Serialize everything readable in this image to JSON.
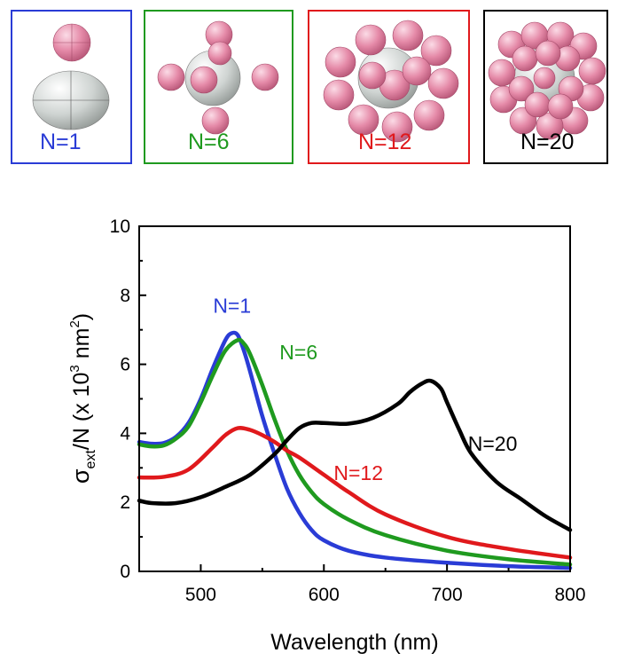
{
  "panels": [
    {
      "label": "N=1",
      "color": "#2a3cd6",
      "border": "#2a3cd6"
    },
    {
      "label": "N=6",
      "color": "#1f9a1f",
      "border": "#1f9a1f"
    },
    {
      "label": "N=12",
      "color": "#e0191c",
      "border": "#e0191c"
    },
    {
      "label": "N=20",
      "color": "#000000",
      "border": "#000000"
    }
  ],
  "chart_data": {
    "type": "line",
    "title": "",
    "xlabel": "Wavelength (nm)",
    "ylabel_parts": {
      "sigma": "σ",
      "sub": "ext",
      "mid": "/N (x 10",
      "sup3": "3",
      "unit": " nm",
      "sup2": "2",
      "end": ")"
    },
    "xlim": [
      450,
      800
    ],
    "ylim": [
      0,
      10
    ],
    "xticks": [
      500,
      600,
      700,
      800
    ],
    "yticks": [
      0,
      2,
      4,
      6,
      8,
      10
    ],
    "grid": false,
    "series": [
      {
        "name": "N=1",
        "color": "#2a3cd6",
        "x": [
          450,
          460,
          470,
          480,
          490,
          500,
          510,
          520,
          525,
          530,
          535,
          540,
          550,
          560,
          570,
          580,
          590,
          600,
          620,
          650,
          700,
          750,
          800
        ],
        "y": [
          3.75,
          3.7,
          3.72,
          3.9,
          4.3,
          5.0,
          5.9,
          6.7,
          6.9,
          6.85,
          6.4,
          5.8,
          4.5,
          3.4,
          2.4,
          1.7,
          1.2,
          0.9,
          0.6,
          0.4,
          0.25,
          0.15,
          0.1
        ]
      },
      {
        "name": "N=6",
        "color": "#1f9a1f",
        "x": [
          450,
          460,
          470,
          480,
          490,
          500,
          510,
          520,
          530,
          535,
          540,
          550,
          560,
          570,
          580,
          590,
          600,
          620,
          650,
          700,
          750,
          800
        ],
        "y": [
          3.68,
          3.62,
          3.65,
          3.85,
          4.2,
          4.9,
          5.7,
          6.4,
          6.7,
          6.6,
          6.3,
          5.4,
          4.4,
          3.5,
          2.8,
          2.3,
          1.95,
          1.5,
          1.05,
          0.6,
          0.35,
          0.2
        ]
      },
      {
        "name": "N=12",
        "color": "#e0191c",
        "x": [
          450,
          470,
          490,
          510,
          520,
          530,
          540,
          550,
          560,
          570,
          580,
          600,
          620,
          650,
          700,
          750,
          800
        ],
        "y": [
          2.72,
          2.74,
          2.95,
          3.6,
          3.95,
          4.15,
          4.1,
          3.95,
          3.75,
          3.5,
          3.3,
          2.8,
          2.3,
          1.65,
          1.0,
          0.65,
          0.4
        ]
      },
      {
        "name": "N=20",
        "color": "#000000",
        "x": [
          450,
          460,
          480,
          500,
          520,
          540,
          560,
          570,
          580,
          590,
          600,
          620,
          640,
          660,
          670,
          680,
          687,
          695,
          700,
          710,
          720,
          740,
          760,
          780,
          800
        ],
        "y": [
          2.05,
          1.98,
          1.98,
          2.15,
          2.45,
          2.8,
          3.4,
          3.8,
          4.15,
          4.3,
          4.3,
          4.28,
          4.45,
          4.85,
          5.2,
          5.45,
          5.52,
          5.3,
          4.9,
          4.1,
          3.4,
          2.6,
          2.1,
          1.6,
          1.2
        ]
      }
    ],
    "annotations": [
      {
        "text": "N=1",
        "color": "#2a3cd6",
        "x": 510,
        "y": 7.5
      },
      {
        "text": "N=6",
        "color": "#1f9a1f",
        "x": 564,
        "y": 6.15
      },
      {
        "text": "N=12",
        "color": "#e0191c",
        "x": 608,
        "y": 2.65
      },
      {
        "text": "N=20",
        "color": "#000000",
        "x": 717,
        "y": 3.5
      }
    ]
  }
}
